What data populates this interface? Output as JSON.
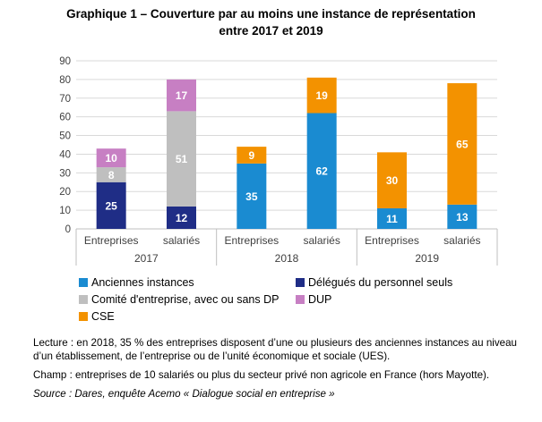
{
  "title_line1": "Graphique 1 – Couverture par au moins une instance de représentation",
  "title_line2": "entre 2017 et 2019",
  "chart_data": {
    "type": "bar",
    "stacked": true,
    "ylim": [
      0,
      90
    ],
    "yticks": [
      0,
      10,
      20,
      30,
      40,
      50,
      60,
      70,
      80,
      90
    ],
    "grid": true,
    "groups": [
      "2017",
      "2018",
      "2019"
    ],
    "categories": [
      {
        "label": "Entreprises",
        "group": "2017"
      },
      {
        "label": "salariés",
        "group": "2017"
      },
      {
        "label": "Entreprises",
        "group": "2018"
      },
      {
        "label": "salariés",
        "group": "2018"
      },
      {
        "label": "Entreprises",
        "group": "2019"
      },
      {
        "label": "salariés",
        "group": "2019"
      }
    ],
    "series": [
      {
        "name": "Anciennes instances",
        "color": "#1a8bd1",
        "values": [
          0,
          0,
          35,
          62,
          11,
          13
        ]
      },
      {
        "name": "Délégués du personnel seuls",
        "color": "#1f2d86",
        "values": [
          25,
          12,
          0,
          0,
          0,
          0
        ]
      },
      {
        "name": "Comité d'entreprise, avec ou sans DP",
        "color": "#bfbfbf",
        "values": [
          8,
          51,
          0,
          0,
          0,
          0
        ]
      },
      {
        "name": "DUP",
        "color": "#c77fc3",
        "values": [
          10,
          17,
          0,
          0,
          0,
          0
        ]
      },
      {
        "name": "CSE",
        "color": "#f39200",
        "values": [
          0,
          0,
          9,
          19,
          30,
          65
        ]
      }
    ],
    "label_colors": {
      "on_light": "#ffffff"
    },
    "legend_position": "bottom"
  },
  "notes": {
    "lecture": "Lecture : en 2018, 35 % des entreprises disposent d’une ou plusieurs des anciennes instances au niveau d’un établissement, de l’entreprise ou de l’unité économique et sociale (UES).",
    "champ": "Champ : entreprises de 10 salariés ou plus du secteur privé non agricole en France (hors Mayotte).",
    "source": "Source : Dares, enquête Acemo « Dialogue social en entreprise »"
  }
}
